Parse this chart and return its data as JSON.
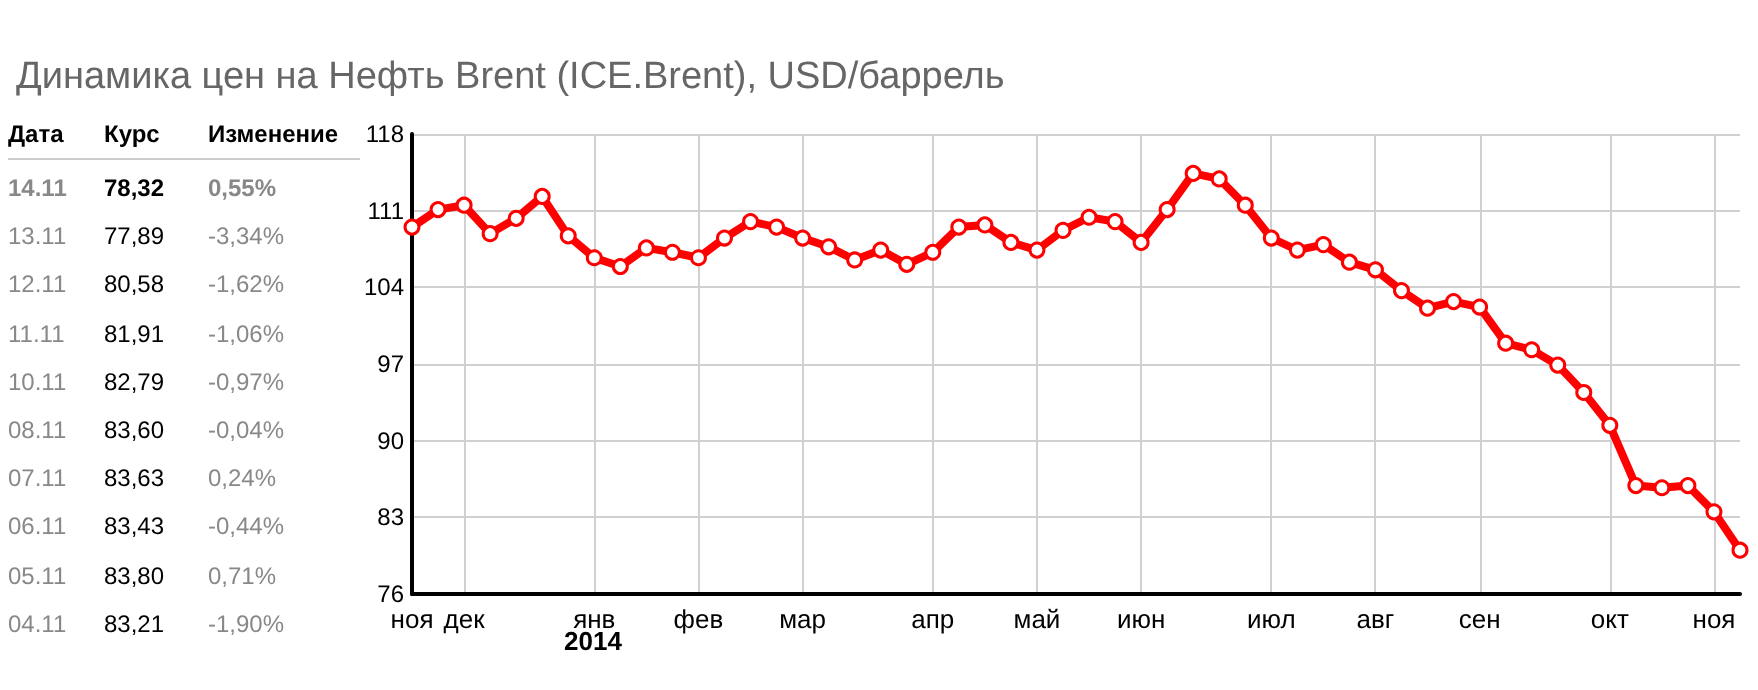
{
  "chart_data": [
    {
      "type": "other",
      "annotations": [
        "Дата",
        "Курс",
        "Изменение",
        "14.11",
        "78,32",
        "0,55%",
        "13.11",
        "77,89",
        "-3,34%",
        "12.11",
        "80,58",
        "-1,62%",
        "11.11",
        "81,91",
        "-1,06%",
        "10.11",
        "82,79",
        "-0,97%",
        "08.11",
        "83,60",
        "-0,04%",
        "07.11",
        "83,63",
        "0,24%",
        "06.11",
        "83,43",
        "-0,44%",
        "05.11",
        "83,80",
        "0,71%",
        "04.11",
        "83,21",
        "-1,90%"
      ]
    },
    {
      "type": "line",
      "title": "Динамика цен на Нефть Brent (ICE.Brent), USD/баррель",
      "categories": [
        "ноя",
        null,
        "дек",
        null,
        null,
        null,
        null,
        "янв",
        null,
        null,
        null,
        "фев",
        null,
        null,
        null,
        "мар",
        null,
        null,
        null,
        null,
        "апр",
        null,
        null,
        null,
        "май",
        null,
        null,
        null,
        "июн",
        null,
        null,
        null,
        null,
        "июл",
        null,
        null,
        null,
        "авг",
        null,
        null,
        null,
        "сен",
        null,
        null,
        null,
        null,
        "окт",
        null,
        null,
        null,
        "ноя",
        null
      ],
      "series": [
        {
          "color": "#ff0000",
          "values": [
            109.5,
            111.1,
            111.5,
            108.9,
            110.3,
            112.3,
            108.7,
            106.7,
            105.9,
            107.6,
            107.2,
            106.7,
            108.5,
            110.0,
            109.5,
            108.5,
            107.7,
            106.5,
            107.4,
            106.1,
            107.2,
            109.5,
            109.7,
            108.1,
            107.4,
            109.2,
            110.4,
            110.0,
            108.1,
            111.1,
            114.4,
            113.9,
            111.5,
            108.5,
            107.4,
            107.9,
            106.3,
            105.6,
            103.7,
            102.1,
            102.7,
            102.2,
            98.9,
            98.3,
            96.9,
            94.4,
            91.4,
            85.9,
            85.7,
            85.9,
            83.5,
            80.0
          ]
        }
      ],
      "annotations": [
        "2014"
      ],
      "ylim": [
        76,
        118
      ],
      "yticks": [
        76,
        83,
        90,
        97,
        104,
        111,
        118
      ],
      "grid": true,
      "marker": "circle",
      "line_style": "solid"
    }
  ]
}
